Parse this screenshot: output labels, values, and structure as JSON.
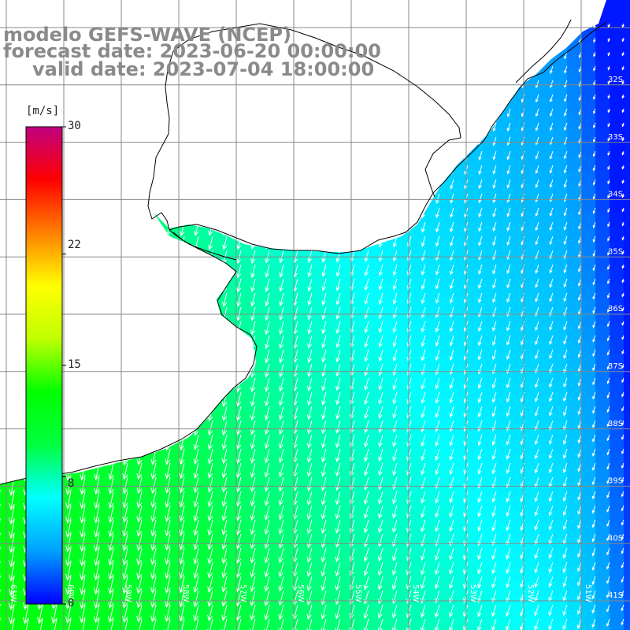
{
  "title": {
    "model": "modelo GEFS-WAVE (NCEP)",
    "forecast": "forecast date: 2023-06-20 00:00:00",
    "valid": "valid date: 2023-07-04 18:00:00"
  },
  "colorbar": {
    "unit": "[m/s]",
    "ticks": [
      "30",
      "22",
      "15",
      "8",
      "0"
    ],
    "tick_values": [
      30,
      22,
      15,
      8,
      0
    ],
    "range": [
      0,
      30
    ],
    "colors": [
      "#0000ff",
      "#00a0ff",
      "#00ffff",
      "#00ff40",
      "#00ff00",
      "#c0ff00",
      "#ffff00",
      "#ff8000",
      "#ff0000",
      "#c00080"
    ]
  },
  "map": {
    "lon_range": [
      -62,
      -51
    ],
    "lat_range": [
      -41,
      -31
    ],
    "lat_labels": [
      "32S",
      "33S",
      "34S",
      "35S",
      "36S",
      "37S",
      "38S",
      "39S",
      "40S",
      "41S"
    ],
    "lon_labels": [
      "61W",
      "60W",
      "59W",
      "58W",
      "57W",
      "56W",
      "55W",
      "54W",
      "53W",
      "52W",
      "51W"
    ],
    "field": "wind speed",
    "arrow_direction": "toward south-southwest",
    "colors": {
      "land": "#ffffff",
      "coast": "#000000",
      "grid": "#888888",
      "arrows": "#ffffff",
      "title": "#8a8a8a"
    }
  }
}
